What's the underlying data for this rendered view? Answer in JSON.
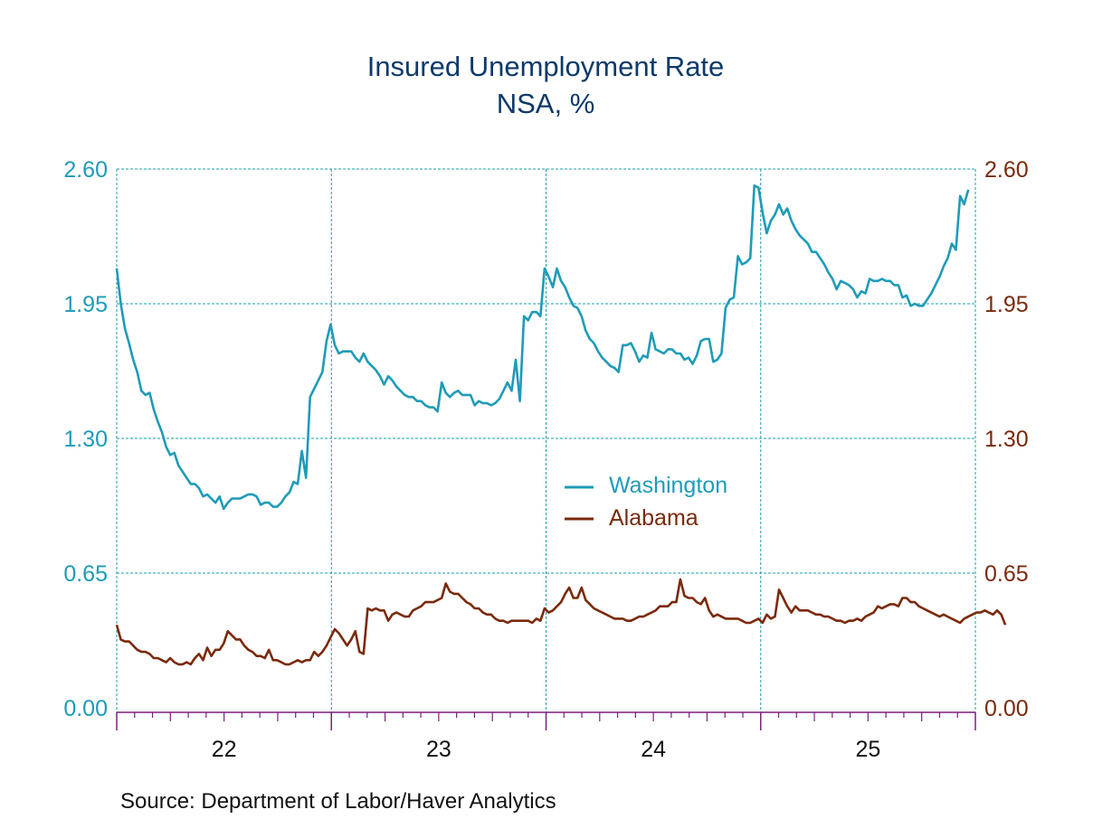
{
  "chart_data": {
    "type": "line",
    "title": "Insured Unemployment Rate",
    "subtitle": "NSA, %",
    "source": "Source:  Department of Labor/Haver Analytics",
    "xlabel": "",
    "ylabel_left": "",
    "ylabel_right": "",
    "x_range": [
      2022.0,
      2026.0
    ],
    "x_ticks": [
      {
        "label": "22",
        "year": 2022
      },
      {
        "label": "23",
        "year": 2023
      },
      {
        "label": "24",
        "year": 2024
      },
      {
        "label": "25",
        "year": 2025
      }
    ],
    "ylim_left": [
      0.0,
      2.6
    ],
    "ylim_right": [
      0.0,
      2.6
    ],
    "y_ticks_left": [
      "0.00",
      "0.65",
      "1.30",
      "1.95",
      "2.60"
    ],
    "y_ticks_right": [
      "0.00",
      "0.65",
      "1.30",
      "1.95",
      "2.60"
    ],
    "grid": true,
    "legend_position": "center",
    "colors": {
      "washington": "#1f9bb8",
      "alabama": "#7a2a0c",
      "grid": "#1a9fa8",
      "axis": "#7b1f7e",
      "title": "#0d3a6b"
    },
    "series": [
      {
        "name": "Washington",
        "axis": "left",
        "color": "#1f9bb8",
        "x_start": 2022.0,
        "step_weeks": 1,
        "values": [
          2.12,
          1.95,
          1.83,
          1.76,
          1.68,
          1.62,
          1.53,
          1.51,
          1.52,
          1.44,
          1.38,
          1.33,
          1.26,
          1.22,
          1.23,
          1.17,
          1.14,
          1.11,
          1.08,
          1.08,
          1.06,
          1.02,
          1.03,
          1.01,
          0.99,
          1.02,
          0.96,
          0.99,
          1.01,
          1.01,
          1.01,
          1.02,
          1.03,
          1.03,
          1.02,
          0.98,
          0.99,
          0.99,
          0.97,
          0.97,
          0.99,
          1.02,
          1.04,
          1.09,
          1.08,
          1.24,
          1.11,
          1.5,
          1.54,
          1.58,
          1.62,
          1.77,
          1.85,
          1.75,
          1.71,
          1.72,
          1.72,
          1.72,
          1.69,
          1.67,
          1.71,
          1.67,
          1.65,
          1.63,
          1.6,
          1.56,
          1.6,
          1.58,
          1.55,
          1.53,
          1.51,
          1.5,
          1.5,
          1.48,
          1.48,
          1.46,
          1.45,
          1.45,
          1.43,
          1.57,
          1.52,
          1.5,
          1.52,
          1.53,
          1.51,
          1.51,
          1.51,
          1.46,
          1.48,
          1.47,
          1.47,
          1.46,
          1.47,
          1.49,
          1.53,
          1.57,
          1.53,
          1.68,
          1.48,
          1.89,
          1.87,
          1.91,
          1.91,
          1.89,
          2.12,
          2.08,
          2.03,
          2.12,
          2.06,
          2.03,
          1.98,
          1.94,
          1.93,
          1.89,
          1.82,
          1.78,
          1.76,
          1.72,
          1.69,
          1.67,
          1.65,
          1.64,
          1.62,
          1.75,
          1.75,
          1.76,
          1.72,
          1.67,
          1.7,
          1.69,
          1.81,
          1.73,
          1.72,
          1.71,
          1.73,
          1.73,
          1.71,
          1.71,
          1.68,
          1.69,
          1.66,
          1.7,
          1.77,
          1.78,
          1.78,
          1.67,
          1.68,
          1.71,
          1.93,
          1.97,
          1.98,
          2.18,
          2.14,
          2.15,
          2.17,
          2.52,
          2.51,
          2.39,
          2.29,
          2.35,
          2.38,
          2.43,
          2.38,
          2.41,
          2.35,
          2.31,
          2.28,
          2.26,
          2.24,
          2.2,
          2.2,
          2.17,
          2.14,
          2.1,
          2.07,
          2.02,
          2.06,
          2.05,
          2.04,
          2.02,
          1.98,
          2.01,
          2.0,
          2.07,
          2.06,
          2.06,
          2.07,
          2.06,
          2.06,
          2.04,
          2.04,
          1.98,
          1.99,
          1.94,
          1.95,
          1.94,
          1.94,
          1.97,
          2.0,
          2.04,
          2.08,
          2.13,
          2.17,
          2.24,
          2.21,
          2.47,
          2.43,
          2.5
        ]
      },
      {
        "name": "Alabama",
        "axis": "right",
        "color": "#7a2a0c",
        "x_start": 2022.0,
        "step_weeks": 1,
        "values": [
          0.4,
          0.33,
          0.32,
          0.32,
          0.3,
          0.28,
          0.27,
          0.27,
          0.26,
          0.24,
          0.24,
          0.23,
          0.22,
          0.24,
          0.22,
          0.21,
          0.21,
          0.22,
          0.21,
          0.24,
          0.26,
          0.23,
          0.29,
          0.25,
          0.28,
          0.28,
          0.31,
          0.37,
          0.35,
          0.33,
          0.33,
          0.3,
          0.28,
          0.27,
          0.25,
          0.25,
          0.24,
          0.28,
          0.23,
          0.23,
          0.22,
          0.21,
          0.21,
          0.22,
          0.23,
          0.22,
          0.23,
          0.23,
          0.27,
          0.25,
          0.27,
          0.3,
          0.34,
          0.38,
          0.36,
          0.33,
          0.3,
          0.33,
          0.37,
          0.27,
          0.26,
          0.48,
          0.47,
          0.48,
          0.47,
          0.47,
          0.42,
          0.45,
          0.46,
          0.45,
          0.44,
          0.44,
          0.47,
          0.48,
          0.49,
          0.51,
          0.51,
          0.51,
          0.52,
          0.53,
          0.6,
          0.56,
          0.55,
          0.55,
          0.53,
          0.51,
          0.5,
          0.48,
          0.48,
          0.46,
          0.45,
          0.45,
          0.43,
          0.42,
          0.42,
          0.41,
          0.42,
          0.42,
          0.42,
          0.42,
          0.42,
          0.41,
          0.43,
          0.42,
          0.48,
          0.46,
          0.47,
          0.49,
          0.51,
          0.55,
          0.58,
          0.53,
          0.53,
          0.58,
          0.52,
          0.5,
          0.48,
          0.47,
          0.46,
          0.45,
          0.44,
          0.43,
          0.43,
          0.43,
          0.42,
          0.42,
          0.43,
          0.44,
          0.44,
          0.45,
          0.46,
          0.47,
          0.49,
          0.49,
          0.49,
          0.51,
          0.51,
          0.62,
          0.54,
          0.53,
          0.53,
          0.51,
          0.5,
          0.53,
          0.47,
          0.44,
          0.45,
          0.44,
          0.43,
          0.43,
          0.43,
          0.43,
          0.42,
          0.41,
          0.41,
          0.42,
          0.43,
          0.41,
          0.45,
          0.43,
          0.44,
          0.57,
          0.53,
          0.49,
          0.46,
          0.49,
          0.47,
          0.47,
          0.47,
          0.46,
          0.45,
          0.45,
          0.44,
          0.44,
          0.43,
          0.42,
          0.42,
          0.41,
          0.42,
          0.42,
          0.43,
          0.42,
          0.44,
          0.45,
          0.46,
          0.49,
          0.48,
          0.49,
          0.5,
          0.5,
          0.49,
          0.53,
          0.53,
          0.51,
          0.51,
          0.49,
          0.48,
          0.47,
          0.46,
          0.45,
          0.44,
          0.45,
          0.44,
          0.43,
          0.42,
          0.41,
          0.43,
          0.44,
          0.45,
          0.46,
          0.46,
          0.47,
          0.46,
          0.45,
          0.47,
          0.45,
          0.4
        ]
      }
    ],
    "legend": [
      {
        "label": "Washington",
        "color": "#1f9bb8"
      },
      {
        "label": "Alabama",
        "color": "#7a2a0c"
      }
    ]
  }
}
